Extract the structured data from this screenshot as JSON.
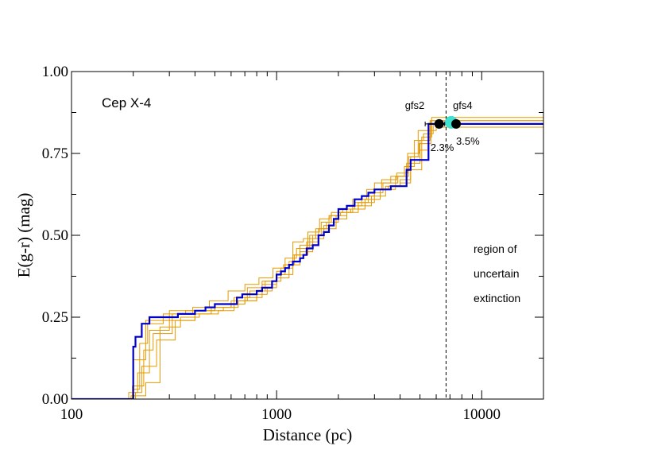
{
  "chart_data": {
    "type": "line",
    "title": "Cep X-4",
    "xlabel": "Distance (pc)",
    "ylabel": "E(g-r) (mag)",
    "xscale": "log",
    "xlim": [
      100,
      20000
    ],
    "ylim": [
      0.0,
      1.0
    ],
    "x_major_ticks": [
      100,
      1000,
      10000
    ],
    "x_tick_labels": [
      "100",
      "1000",
      "10000"
    ],
    "y_major_ticks": [
      0.0,
      0.25,
      0.5,
      0.75,
      1.0
    ],
    "y_tick_labels": [
      "0.00",
      "0.25",
      "0.50",
      "0.75",
      "1.00"
    ],
    "grid": false,
    "colors": {
      "median": "#0000cc",
      "samples": "#e69900",
      "marker": "#000000",
      "highlight": "#40e0d0",
      "axis": "#000000"
    },
    "median_profile": {
      "name": "median",
      "x": [
        100,
        195,
        200,
        205,
        220,
        240,
        300,
        330,
        360,
        400,
        450,
        500,
        600,
        640,
        680,
        750,
        800,
        850,
        900,
        950,
        1000,
        1050,
        1100,
        1150,
        1200,
        1300,
        1350,
        1400,
        1500,
        1600,
        1700,
        1800,
        1900,
        2000,
        2200,
        2400,
        2600,
        2800,
        3000,
        3300,
        3600,
        4000,
        4300,
        4500,
        5000,
        5500,
        5700,
        20000
      ],
      "y": [
        0.0,
        0.0,
        0.16,
        0.19,
        0.23,
        0.25,
        0.25,
        0.26,
        0.26,
        0.27,
        0.28,
        0.29,
        0.29,
        0.31,
        0.32,
        0.32,
        0.33,
        0.34,
        0.34,
        0.36,
        0.38,
        0.39,
        0.4,
        0.41,
        0.42,
        0.43,
        0.44,
        0.46,
        0.47,
        0.5,
        0.51,
        0.53,
        0.55,
        0.58,
        0.59,
        0.61,
        0.62,
        0.63,
        0.64,
        0.64,
        0.65,
        0.65,
        0.7,
        0.73,
        0.73,
        0.84,
        0.84,
        0.84
      ]
    },
    "sample_profiles": [
      {
        "x": [
          100,
          150,
          195,
          200,
          230,
          300,
          400,
          500,
          700,
          800,
          900,
          1000,
          1200,
          1400,
          1600,
          1800,
          2000,
          2500,
          3000,
          3500,
          4000,
          4500,
          5000,
          5500,
          6000,
          20000
        ],
        "y": [
          0.0,
          0.0,
          0.01,
          0.12,
          0.24,
          0.27,
          0.27,
          0.29,
          0.3,
          0.32,
          0.34,
          0.38,
          0.44,
          0.48,
          0.52,
          0.56,
          0.58,
          0.6,
          0.64,
          0.65,
          0.66,
          0.74,
          0.76,
          0.82,
          0.83,
          0.83
        ]
      },
      {
        "x": [
          100,
          160,
          190,
          210,
          240,
          300,
          400,
          500,
          600,
          700,
          850,
          1000,
          1100,
          1300,
          1500,
          1700,
          1900,
          2200,
          2600,
          3000,
          3600,
          4200,
          4700,
          5200,
          5800,
          20000
        ],
        "y": [
          0.0,
          0.0,
          0.02,
          0.08,
          0.21,
          0.24,
          0.27,
          0.28,
          0.29,
          0.31,
          0.35,
          0.39,
          0.41,
          0.45,
          0.5,
          0.53,
          0.55,
          0.59,
          0.62,
          0.66,
          0.68,
          0.71,
          0.79,
          0.81,
          0.84,
          0.84
        ]
      },
      {
        "x": [
          100,
          170,
          200,
          215,
          235,
          280,
          360,
          450,
          550,
          650,
          800,
          950,
          1050,
          1200,
          1350,
          1550,
          1750,
          2000,
          2300,
          2700,
          3200,
          3800,
          4300,
          5000,
          5600,
          20000
        ],
        "y": [
          0.0,
          0.0,
          0.03,
          0.17,
          0.23,
          0.26,
          0.27,
          0.27,
          0.28,
          0.3,
          0.33,
          0.36,
          0.4,
          0.48,
          0.49,
          0.52,
          0.54,
          0.57,
          0.58,
          0.61,
          0.64,
          0.68,
          0.72,
          0.79,
          0.85,
          0.85
        ]
      },
      {
        "x": [
          100,
          180,
          205,
          220,
          260,
          320,
          400,
          480,
          600,
          720,
          850,
          1000,
          1150,
          1300,
          1500,
          1700,
          1950,
          2200,
          2500,
          2900,
          3400,
          4000,
          4500,
          5100,
          5700,
          20000
        ],
        "y": [
          0.0,
          0.0,
          0.02,
          0.1,
          0.18,
          0.24,
          0.26,
          0.28,
          0.3,
          0.34,
          0.36,
          0.37,
          0.42,
          0.47,
          0.49,
          0.52,
          0.56,
          0.57,
          0.59,
          0.62,
          0.65,
          0.67,
          0.7,
          0.8,
          0.86,
          0.86
        ]
      },
      {
        "x": [
          100,
          190,
          200,
          230,
          270,
          340,
          420,
          520,
          620,
          740,
          880,
          1000,
          1100,
          1250,
          1450,
          1650,
          1850,
          2100,
          2400,
          2800,
          3300,
          3900,
          4400,
          4900,
          5500,
          20000
        ],
        "y": [
          0.0,
          0.0,
          0.01,
          0.05,
          0.22,
          0.25,
          0.26,
          0.27,
          0.31,
          0.33,
          0.36,
          0.38,
          0.43,
          0.46,
          0.5,
          0.54,
          0.57,
          0.58,
          0.6,
          0.63,
          0.66,
          0.68,
          0.74,
          0.82,
          0.84,
          0.84
        ]
      },
      {
        "x": [
          100,
          175,
          198,
          225,
          250,
          310,
          390,
          470,
          580,
          700,
          820,
          960,
          1080,
          1220,
          1420,
          1620,
          1820,
          2050,
          2350,
          2750,
          3250,
          3850,
          4350,
          4950,
          5650,
          20000
        ],
        "y": [
          0.0,
          0.0,
          0.04,
          0.15,
          0.2,
          0.26,
          0.28,
          0.3,
          0.33,
          0.35,
          0.37,
          0.4,
          0.41,
          0.44,
          0.51,
          0.55,
          0.56,
          0.57,
          0.61,
          0.64,
          0.67,
          0.69,
          0.75,
          0.78,
          0.85,
          0.85
        ]
      }
    ],
    "points": [
      {
        "label": "gfs2",
        "x": 6200,
        "y": 0.84,
        "xerr_low": 5300,
        "xerr_high": 6600,
        "percent": "2.3%"
      },
      {
        "label": "gfs4",
        "x": 7500,
        "y": 0.84,
        "xerr_low": 7200,
        "xerr_high": 7700,
        "percent": "3.5%"
      }
    ],
    "highlight_point": {
      "x": 7100,
      "y": 0.845
    },
    "cutoff_line": {
      "x": 6700,
      "style": "dashed"
    },
    "region_text": [
      "region of",
      "uncertain",
      "extinction"
    ]
  }
}
